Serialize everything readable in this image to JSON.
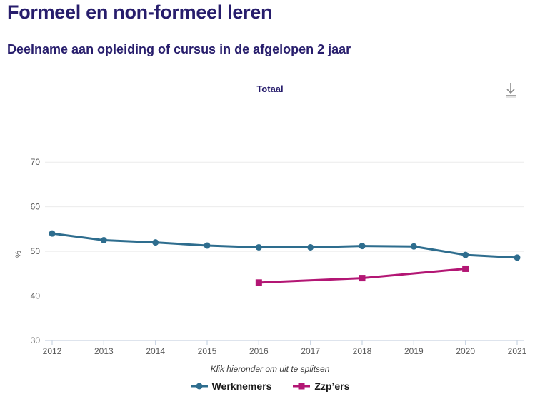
{
  "header": {
    "title": "Formeel en non-formeel leren",
    "subtitle": "Deelname aan opleiding of cursus in de afgelopen 2 jaar",
    "column_label": "Totaal"
  },
  "toolbar": {
    "download_icon": "download-arrow-to-line"
  },
  "chart_data": {
    "type": "line",
    "title": "Totaal",
    "xlabel": "",
    "ylabel": "%",
    "ylim": [
      30,
      75
    ],
    "yticks": [
      30,
      40,
      50,
      60,
      70
    ],
    "grid": true,
    "legend_position": "bottom",
    "categories": [
      "2012",
      "2013",
      "2014",
      "2015",
      "2016",
      "2017",
      "2018",
      "2019",
      "2020",
      "2021"
    ],
    "series": [
      {
        "name": "Werknemers",
        "color": "#2e6d8e",
        "marker": "circle",
        "x": [
          "2012",
          "2013",
          "2014",
          "2015",
          "2016",
          "2017",
          "2018",
          "2019",
          "2020",
          "2021"
        ],
        "values": [
          54.0,
          52.5,
          52.0,
          51.3,
          50.9,
          50.9,
          51.2,
          51.1,
          49.2,
          48.6
        ]
      },
      {
        "name": "Zzp’ers",
        "color": "#b31674",
        "marker": "square",
        "x": [
          "2016",
          "2018",
          "2020"
        ],
        "values": [
          43.0,
          44.0,
          46.1
        ]
      }
    ]
  },
  "footer": {
    "note": "Klik hieronder om uit te splitsen"
  },
  "colors": {
    "title_text": "#271d6c",
    "axis_text": "#595959",
    "grid_line": "#ebebeb",
    "axis_line": "#c9d4e2",
    "note_text": "#3c3c3c",
    "legend_text": "#1a1a1a",
    "download_icon": "#8c8c8c"
  }
}
